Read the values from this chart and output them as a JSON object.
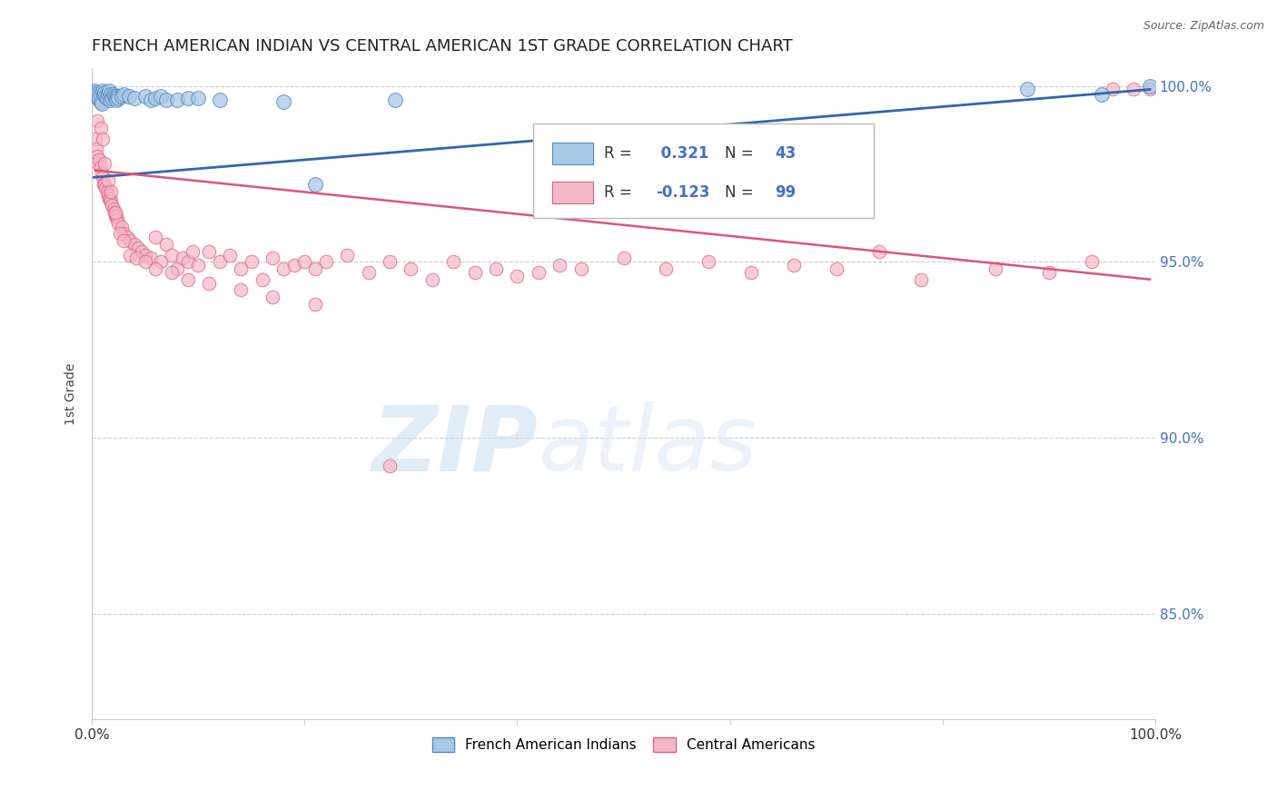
{
  "title": "FRENCH AMERICAN INDIAN VS CENTRAL AMERICAN 1ST GRADE CORRELATION CHART",
  "source": "Source: ZipAtlas.com",
  "ylabel": "1st Grade",
  "xlim": [
    0.0,
    1.0
  ],
  "ylim": [
    0.82,
    1.005
  ],
  "yticks": [
    0.85,
    0.9,
    0.95,
    1.0
  ],
  "ytick_labels": [
    "85.0%",
    "90.0%",
    "95.0%",
    "100.0%"
  ],
  "blue_R": 0.321,
  "blue_N": 43,
  "pink_R": -0.123,
  "pink_N": 99,
  "blue_color": "#a8c8e8",
  "pink_color": "#f5b8c8",
  "blue_edge_color": "#5588bb",
  "pink_edge_color": "#e06080",
  "blue_line_color": "#3366aa",
  "pink_line_color": "#dd5577",
  "legend_blue_label": "French American Indians",
  "legend_pink_label": "Central Americans",
  "watermark_zip": "ZIP",
  "watermark_atlas": "atlas",
  "blue_x": [
    0.002,
    0.003,
    0.004,
    0.005,
    0.006,
    0.007,
    0.008,
    0.009,
    0.01,
    0.011,
    0.012,
    0.013,
    0.014,
    0.015,
    0.016,
    0.017,
    0.018,
    0.019,
    0.02,
    0.021,
    0.022,
    0.023,
    0.024,
    0.025,
    0.028,
    0.03,
    0.035,
    0.04,
    0.05,
    0.055,
    0.06,
    0.065,
    0.07,
    0.08,
    0.09,
    0.1,
    0.12,
    0.18,
    0.21,
    0.285,
    0.88,
    0.95,
    0.995
  ],
  "blue_y": [
    0.9985,
    0.998,
    0.9975,
    0.997,
    0.9965,
    0.996,
    0.9955,
    0.995,
    0.9985,
    0.9975,
    0.998,
    0.997,
    0.9965,
    0.9975,
    0.9985,
    0.996,
    0.9975,
    0.9965,
    0.9975,
    0.997,
    0.9965,
    0.996,
    0.997,
    0.9965,
    0.997,
    0.9975,
    0.997,
    0.9965,
    0.997,
    0.996,
    0.9965,
    0.997,
    0.996,
    0.996,
    0.9965,
    0.9965,
    0.996,
    0.9955,
    0.972,
    0.996,
    0.999,
    0.9975,
    1.0
  ],
  "pink_x": [
    0.003,
    0.004,
    0.005,
    0.006,
    0.007,
    0.008,
    0.009,
    0.01,
    0.011,
    0.012,
    0.013,
    0.014,
    0.015,
    0.016,
    0.017,
    0.018,
    0.019,
    0.02,
    0.021,
    0.022,
    0.023,
    0.024,
    0.025,
    0.028,
    0.03,
    0.033,
    0.036,
    0.04,
    0.043,
    0.047,
    0.05,
    0.055,
    0.06,
    0.065,
    0.07,
    0.075,
    0.08,
    0.085,
    0.09,
    0.095,
    0.1,
    0.11,
    0.12,
    0.13,
    0.14,
    0.15,
    0.16,
    0.17,
    0.18,
    0.19,
    0.2,
    0.21,
    0.22,
    0.24,
    0.26,
    0.28,
    0.3,
    0.32,
    0.34,
    0.36,
    0.38,
    0.4,
    0.42,
    0.44,
    0.46,
    0.5,
    0.54,
    0.58,
    0.62,
    0.66,
    0.7,
    0.74,
    0.78,
    0.85,
    0.9,
    0.94,
    0.96,
    0.98,
    0.995,
    0.005,
    0.008,
    0.01,
    0.012,
    0.015,
    0.018,
    0.022,
    0.026,
    0.03,
    0.036,
    0.042,
    0.05,
    0.06,
    0.075,
    0.09,
    0.11,
    0.14,
    0.17,
    0.21,
    0.28
  ],
  "pink_y": [
    0.985,
    0.982,
    0.98,
    0.978,
    0.979,
    0.977,
    0.975,
    0.974,
    0.972,
    0.972,
    0.971,
    0.97,
    0.969,
    0.968,
    0.968,
    0.967,
    0.966,
    0.965,
    0.964,
    0.963,
    0.963,
    0.962,
    0.961,
    0.96,
    0.958,
    0.957,
    0.956,
    0.955,
    0.954,
    0.953,
    0.952,
    0.951,
    0.957,
    0.95,
    0.955,
    0.952,
    0.948,
    0.951,
    0.95,
    0.953,
    0.949,
    0.953,
    0.95,
    0.952,
    0.948,
    0.95,
    0.945,
    0.951,
    0.948,
    0.949,
    0.95,
    0.948,
    0.95,
    0.952,
    0.947,
    0.95,
    0.948,
    0.945,
    0.95,
    0.947,
    0.948,
    0.946,
    0.947,
    0.949,
    0.948,
    0.951,
    0.948,
    0.95,
    0.947,
    0.949,
    0.948,
    0.953,
    0.945,
    0.948,
    0.947,
    0.95,
    0.999,
    0.999,
    0.999,
    0.99,
    0.988,
    0.985,
    0.978,
    0.973,
    0.97,
    0.964,
    0.958,
    0.956,
    0.952,
    0.951,
    0.95,
    0.948,
    0.947,
    0.945,
    0.944,
    0.942,
    0.94,
    0.938,
    0.892
  ],
  "blue_trendline_x": [
    0.002,
    0.995
  ],
  "blue_trendline_y": [
    0.974,
    0.999
  ],
  "pink_trendline_x": [
    0.003,
    0.995
  ],
  "pink_trendline_y": [
    0.976,
    0.945
  ]
}
